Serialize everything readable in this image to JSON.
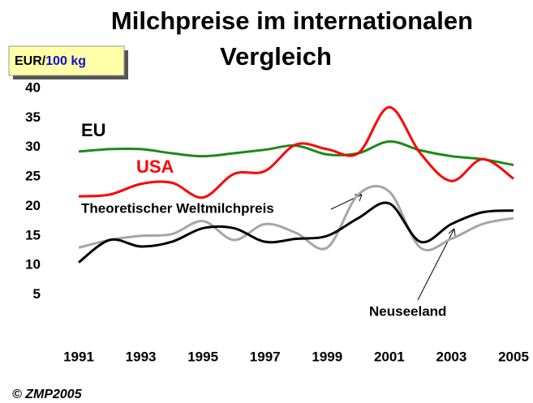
{
  "chart_data": {
    "type": "line",
    "title": [
      "Milchpreise im internationalen",
      "Vergleich"
    ],
    "unit_label": [
      "EUR/",
      "100 kg"
    ],
    "source": "© ZMP2005",
    "x": [
      1991,
      1992,
      1993,
      1994,
      1995,
      1996,
      1997,
      1998,
      1999,
      2000,
      2001,
      2002,
      2003,
      2004,
      2005
    ],
    "xlim": [
      1991,
      2005
    ],
    "xticks": [
      1991,
      1993,
      1995,
      1997,
      1999,
      2001,
      2003,
      2005
    ],
    "ylim": [
      0,
      40
    ],
    "yticks": [
      5,
      10,
      15,
      20,
      25,
      30,
      35,
      40
    ],
    "series": [
      {
        "name": "EU",
        "color": "#1a8a1a",
        "label_color": "#000000",
        "values": [
          29.3,
          29.7,
          29.7,
          29.0,
          28.5,
          29.0,
          29.6,
          30.3,
          28.8,
          29.0,
          31.0,
          29.5,
          28.5,
          28.0,
          27.0
        ]
      },
      {
        "name": "USA",
        "color": "#ff0000",
        "label_color": "#ff0000",
        "values": [
          21.7,
          22.0,
          23.8,
          24.0,
          21.5,
          25.5,
          26.0,
          30.5,
          29.7,
          29.0,
          36.8,
          29.0,
          24.3,
          28.0,
          24.7
        ]
      },
      {
        "name": "Theoretischer Weltmilchpreis",
        "color": "#a6a6a6",
        "label_color": "#000000",
        "values": [
          13.0,
          14.3,
          15.0,
          15.3,
          17.5,
          14.3,
          17.0,
          15.5,
          13.0,
          22.0,
          22.5,
          13.0,
          14.5,
          17.0,
          18.0
        ]
      },
      {
        "name": "Neuseeland",
        "color": "#000000",
        "label_color": "#000000",
        "values": [
          10.5,
          14.3,
          13.2,
          14.0,
          16.3,
          16.3,
          14.0,
          14.5,
          15.0,
          18.0,
          20.5,
          14.0,
          17.0,
          19.0,
          19.3
        ]
      }
    ]
  }
}
